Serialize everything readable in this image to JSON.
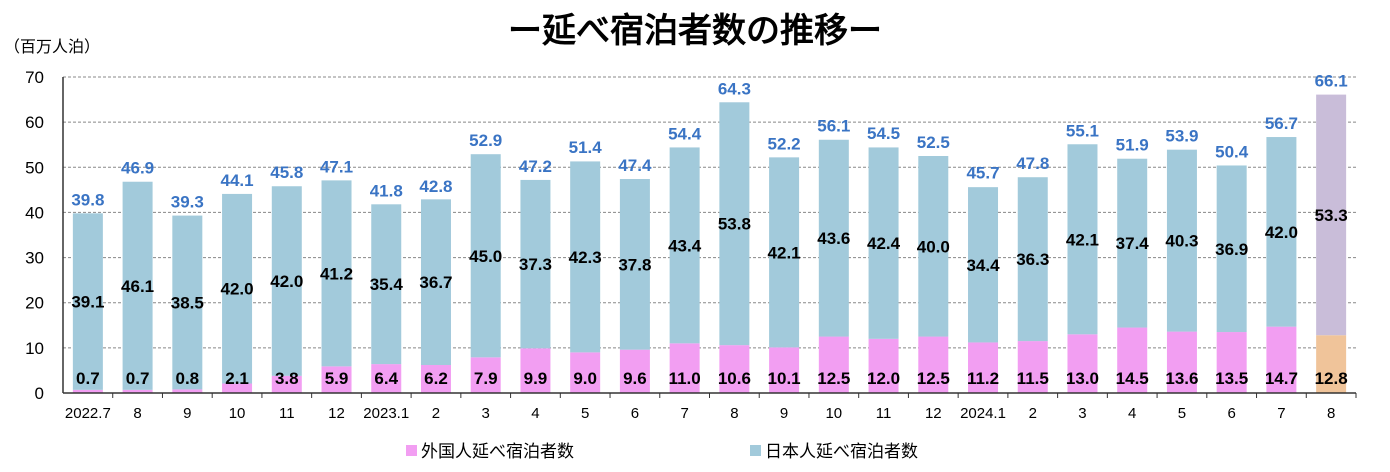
{
  "chart_data": {
    "type": "bar",
    "stacked": true,
    "title": "ー延べ宿泊者数の推移ー",
    "ylabel": "（百万人泊）",
    "xlabel": "",
    "ylim": [
      0,
      70
    ],
    "yticks": [
      0,
      10,
      20,
      30,
      40,
      50,
      60,
      70
    ],
    "grid": true,
    "legend_position": "bottom",
    "categories": [
      "2022.7",
      "8",
      "9",
      "10",
      "11",
      "12",
      "2023.1",
      "2",
      "3",
      "4",
      "5",
      "6",
      "7",
      "8",
      "9",
      "10",
      "11",
      "12",
      "2024.1",
      "2",
      "3",
      "4",
      "5",
      "6",
      "7",
      "8"
    ],
    "series": [
      {
        "name": "外国人延べ宿泊者数",
        "color": "#f29ef2",
        "highlight_color": "#f0c49a",
        "values": [
          0.7,
          0.7,
          0.8,
          2.1,
          3.8,
          5.9,
          6.4,
          6.2,
          7.9,
          9.9,
          9.0,
          9.6,
          11.0,
          10.6,
          10.1,
          12.5,
          12.0,
          12.5,
          11.2,
          11.5,
          13.0,
          14.5,
          13.6,
          13.5,
          14.7,
          12.8
        ]
      },
      {
        "name": "日本人延べ宿泊者数",
        "color": "#a2cadb",
        "highlight_color": "#c9bdd9",
        "values": [
          39.1,
          46.1,
          38.5,
          42.0,
          42.0,
          41.2,
          35.4,
          36.7,
          45.0,
          37.3,
          42.3,
          37.8,
          43.4,
          53.8,
          42.1,
          43.6,
          42.4,
          40.0,
          34.4,
          36.3,
          42.1,
          37.4,
          40.3,
          36.9,
          42.0,
          53.3
        ]
      }
    ],
    "totals": [
      39.8,
      46.9,
      39.3,
      44.1,
      45.8,
      47.1,
      41.8,
      42.8,
      52.9,
      47.2,
      51.4,
      47.4,
      54.4,
      64.3,
      52.2,
      56.1,
      54.5,
      52.5,
      45.7,
      47.8,
      55.1,
      51.9,
      53.9,
      50.4,
      56.7,
      66.1
    ],
    "highlighted_index": 25,
    "total_label_color": "#3a74c4"
  }
}
